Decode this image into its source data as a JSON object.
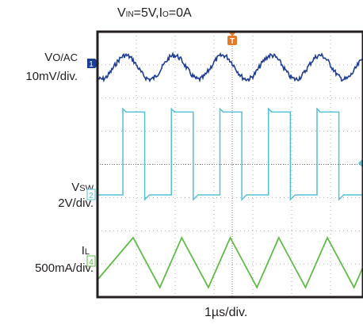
{
  "chart_data": {
    "type": "line",
    "title": "VIN=5V,IO=0A",
    "title_parts": {
      "v": "V",
      "in": "IN",
      "rest1": "=5V,I",
      "o": "O",
      "rest2": "=0A"
    },
    "xlabel": "1µs/div.",
    "x_divisions": 6.8,
    "y_divisions": 8,
    "grid": "dotted",
    "series": [
      {
        "name": "VO/AC",
        "name_parts": {
          "main": "V",
          "sub": "O/AC"
        },
        "scale": "10mV/div.",
        "marker": "1",
        "color": "#1f3f96",
        "waveform": "noisy-sine",
        "period_div": 1.25,
        "amplitude_div": 0.15
      },
      {
        "name": "VSW",
        "name_parts": {
          "main": "V",
          "sub": "SW"
        },
        "scale": "2V/div.",
        "marker": "2",
        "color": "#56c1d6",
        "waveform": "square",
        "period_div": 1.25,
        "duty": 0.45,
        "high_div": 2.5
      },
      {
        "name": "IL",
        "name_parts": {
          "main": "I",
          "sub": "L"
        },
        "scale": "500mA/div.",
        "marker": "4",
        "color": "#5fbc46",
        "waveform": "triangle",
        "period_div": 1.25,
        "peak_to_peak_div": 1.5
      }
    ],
    "trigger_marker": "T"
  }
}
